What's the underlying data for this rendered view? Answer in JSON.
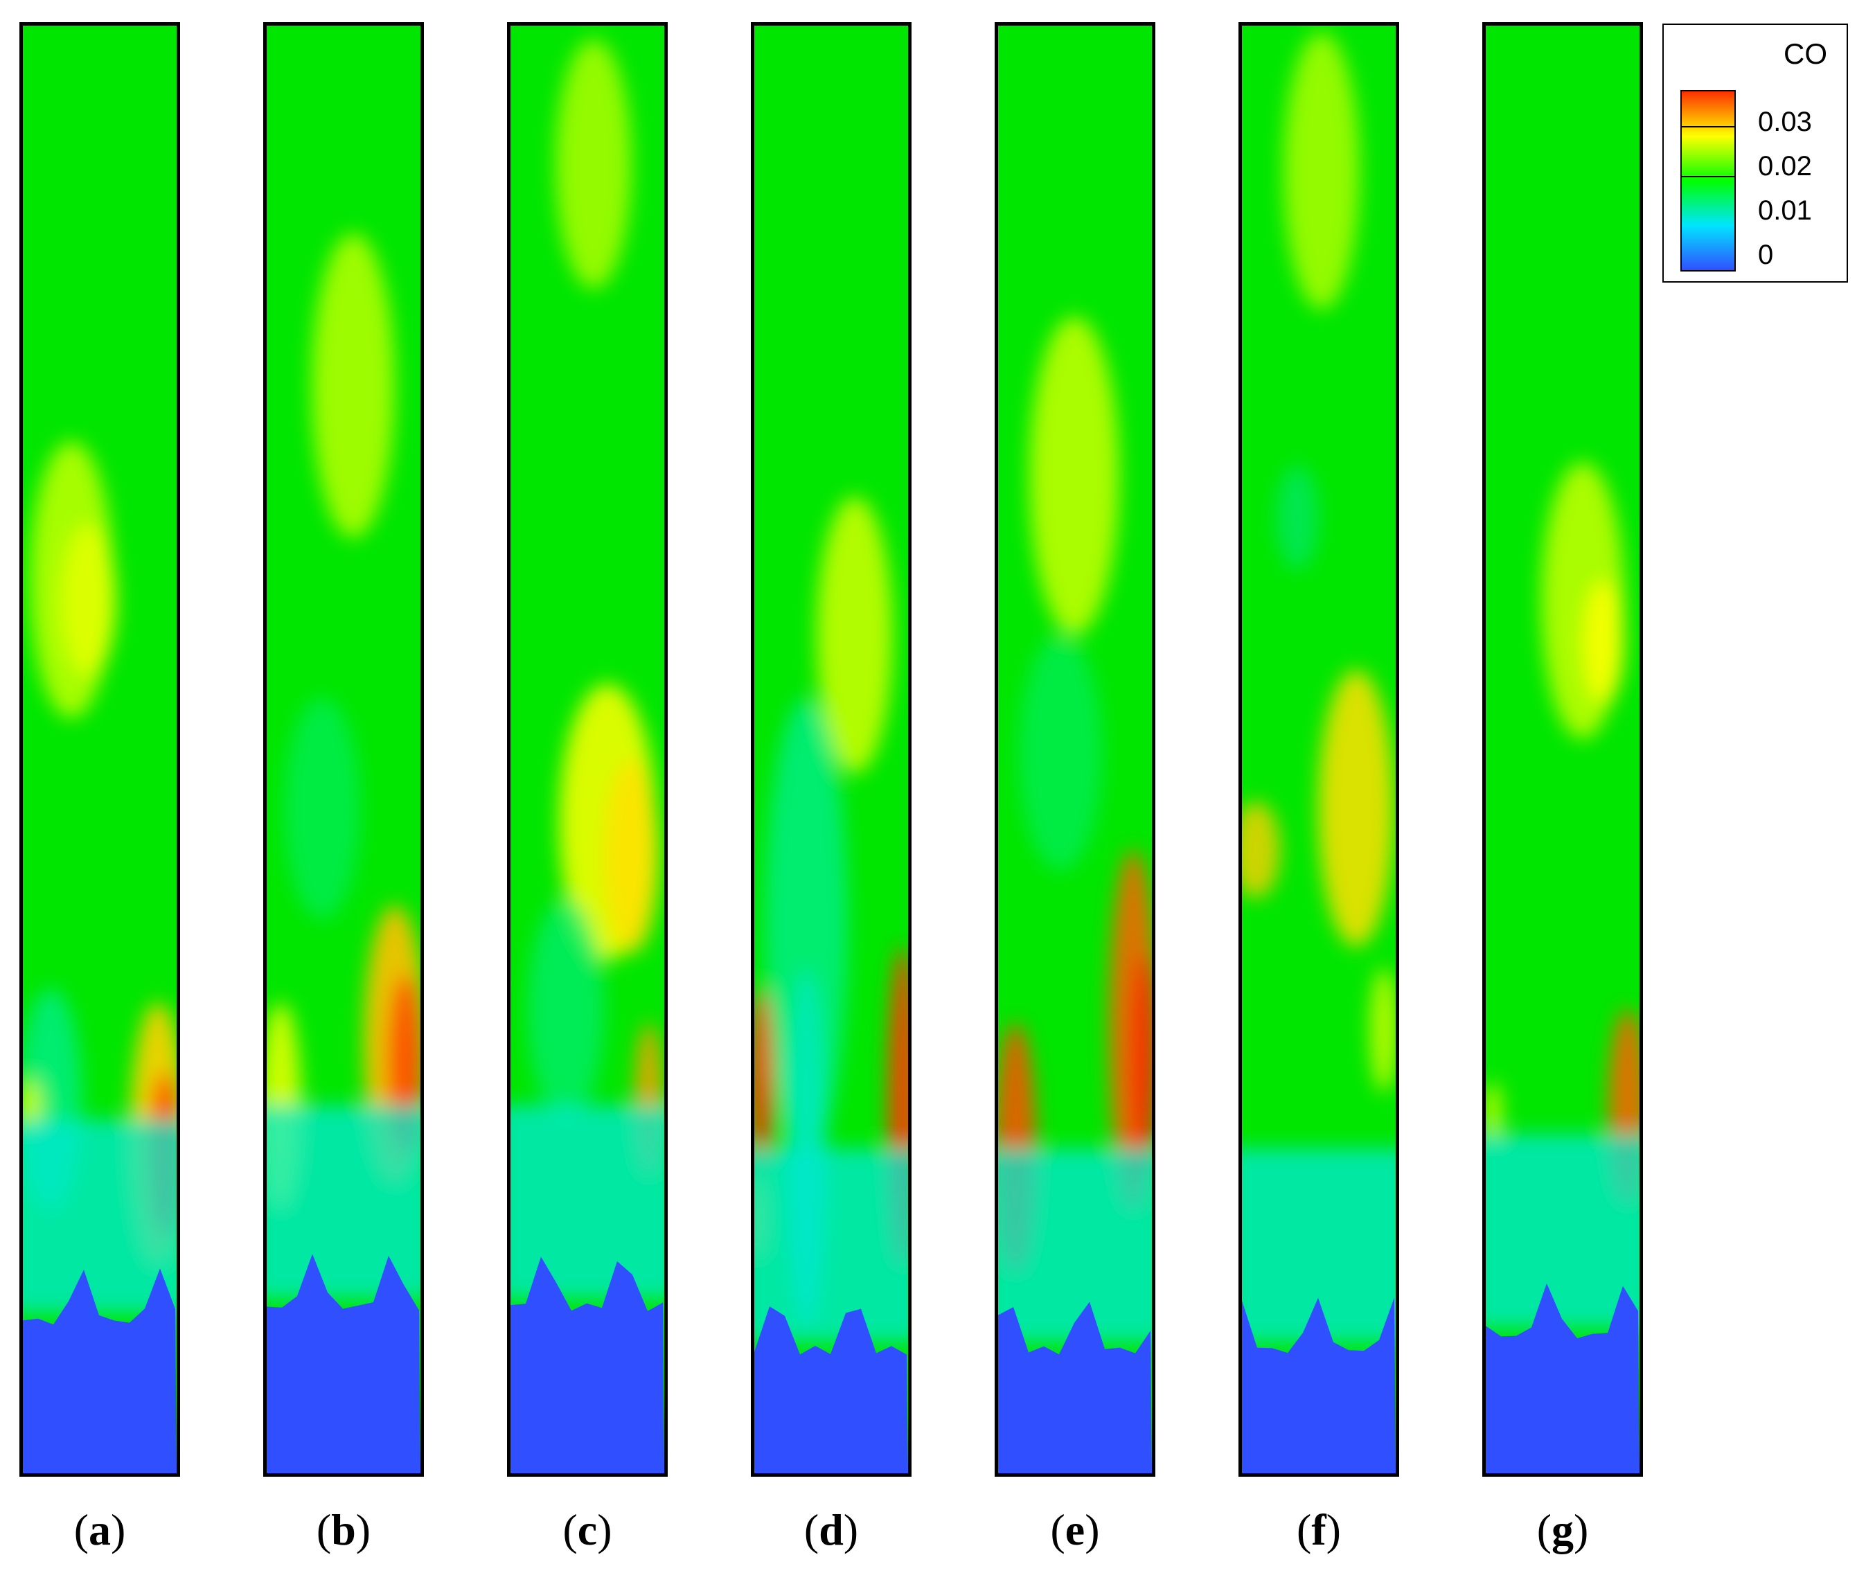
{
  "chart_data": {
    "type": "heatmap",
    "variable": "CO",
    "legend": {
      "title": "CO",
      "ticks": [
        "0.03",
        "0.02",
        "0.01",
        "0"
      ],
      "range": [
        0,
        0.035
      ],
      "position": "top-right"
    },
    "colormap": [
      "#3050ff",
      "#00e5ff",
      "#00ff00",
      "#ffff00",
      "#ff3000"
    ],
    "panels": [
      {
        "label": "a",
        "fuel_front": 0.12,
        "hot_side": "right"
      },
      {
        "label": "b",
        "fuel_front": 0.13,
        "hot_side": "right"
      },
      {
        "label": "c",
        "fuel_front": 0.13,
        "hot_side": "right"
      },
      {
        "label": "d",
        "fuel_front": 0.1,
        "hot_side": "both"
      },
      {
        "label": "e",
        "fuel_front": 0.1,
        "hot_side": "both"
      },
      {
        "label": "f",
        "fuel_front": 0.1,
        "hot_side": "right"
      },
      {
        "label": "g",
        "fuel_front": 0.11,
        "hot_side": "right"
      }
    ]
  },
  "panel_labels": [
    "a",
    "b",
    "c",
    "d",
    "e",
    "f",
    "g"
  ],
  "paren_open": "(",
  "paren_close": ")"
}
